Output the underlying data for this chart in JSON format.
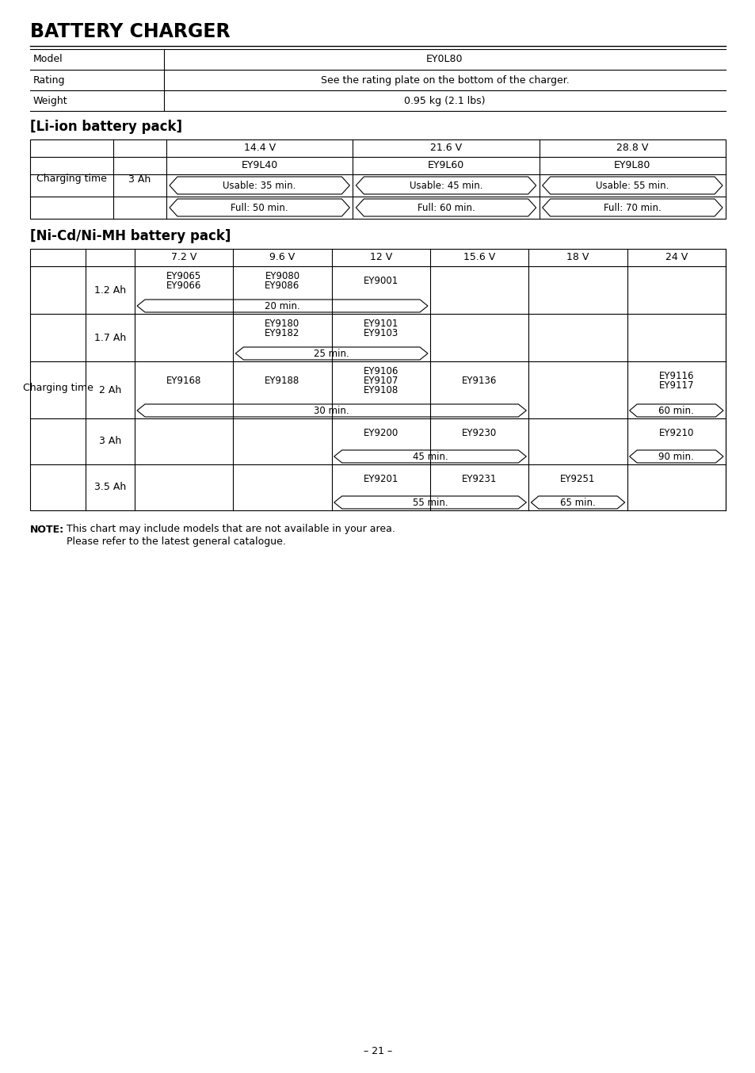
{
  "title": "BATTERY CHARGER",
  "background_color": "#ffffff",
  "text_color": "#000000",
  "page_number": "– 21 –",
  "charger_rows": [
    [
      "Model",
      "EY0L80"
    ],
    [
      "Rating",
      "See the rating plate on the bottom of the charger."
    ],
    [
      "Weight",
      "0.95 kg (2.1 lbs)"
    ]
  ],
  "liion_title": "[Li-ion battery pack]",
  "liion_voltages": [
    "14.4 V",
    "21.6 V",
    "28.8 V"
  ],
  "liion_models": [
    "EY9L40",
    "EY9L60",
    "EY9L80"
  ],
  "liion_usable": [
    "Usable: 35 min.",
    "Usable: 45 min.",
    "Usable: 55 min."
  ],
  "liion_full": [
    "Full: 50 min.",
    "Full: 60 min.",
    "Full: 70 min."
  ],
  "nicd_title": "[Ni-Cd/Ni-MH battery pack]",
  "nicd_volt_headers": [
    "7.2 V",
    "9.6 V",
    "12 V",
    "15.6 V",
    "18 V",
    "24 V"
  ],
  "nicd_rows": [
    {
      "ah": "1.2 Ah",
      "cells": [
        "EY9065\nEY9066",
        "EY9080\nEY9086",
        "EY9001",
        "",
        "",
        ""
      ],
      "bracket": {
        "text": "20 min.",
        "c1": 0,
        "c2": 2
      }
    },
    {
      "ah": "1.7 Ah",
      "cells": [
        "",
        "EY9180\nEY9182",
        "EY9101\nEY9103",
        "",
        "",
        ""
      ],
      "bracket": {
        "text": "25 min.",
        "c1": 1,
        "c2": 2
      }
    },
    {
      "ah": "2 Ah",
      "cells": [
        "EY9168",
        "EY9188",
        "EY9106\nEY9107\nEY9108",
        "EY9136",
        "",
        "EY9116\nEY9117"
      ],
      "bracket": {
        "text": "30 min.",
        "c1": 0,
        "c2": 3
      },
      "bracket2": {
        "text": "60 min.",
        "c1": 5,
        "c2": 5
      }
    },
    {
      "ah": "3 Ah",
      "cells": [
        "",
        "",
        "EY9200",
        "EY9230",
        "",
        "EY9210"
      ],
      "bracket": {
        "text": "45 min.",
        "c1": 2,
        "c2": 3
      },
      "bracket2": {
        "text": "90 min.",
        "c1": 5,
        "c2": 5
      }
    },
    {
      "ah": "3.5 Ah",
      "cells": [
        "",
        "",
        "EY9201",
        "EY9231",
        "EY9251",
        ""
      ],
      "bracket": {
        "text": "55 min.",
        "c1": 2,
        "c2": 3
      },
      "bracket2": {
        "text": "65 min.",
        "c1": 4,
        "c2": 4
      }
    }
  ],
  "note_bold": "NOTE:",
  "note_text1": "This chart may include models that are not available in your area.",
  "note_text2": "Please refer to the latest general catalogue."
}
